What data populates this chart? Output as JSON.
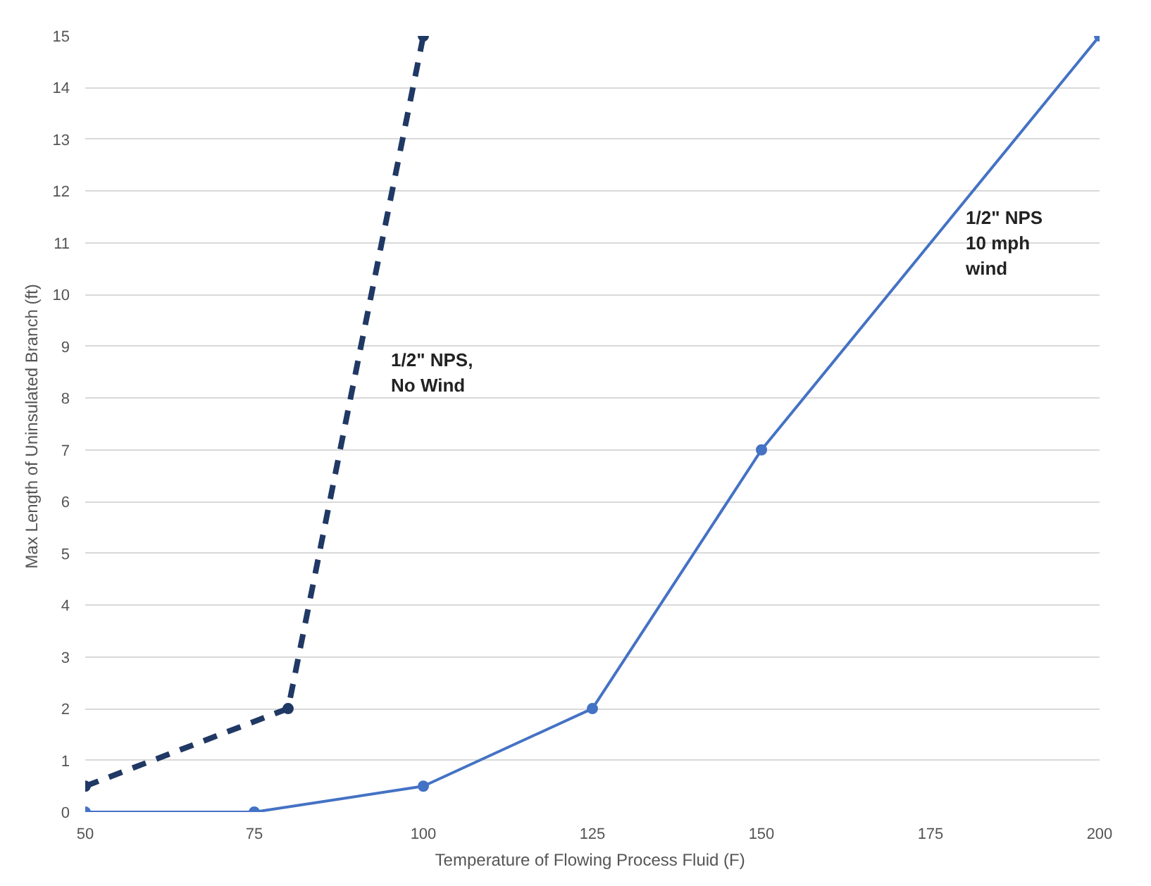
{
  "chart_data": {
    "type": "line",
    "xlabel": "Temperature  of Flowing Process Fluid (F)",
    "ylabel": "Max Length  of Uninsulated Branch (ft)",
    "xlim": [
      50,
      200
    ],
    "xticks": [
      50,
      75,
      100,
      125,
      150,
      175,
      200
    ],
    "ylim": [
      0,
      15
    ],
    "yticks": [
      0,
      1,
      2,
      3,
      4,
      5,
      6,
      7,
      8,
      9,
      10,
      11,
      12,
      13,
      14,
      15
    ],
    "grid": "y",
    "marker": "circle",
    "series": [
      {
        "name": "1/2\" NPS,\nNo Wind",
        "color": "#203864",
        "line_style": "dashed",
        "x": [
          50,
          80,
          100
        ],
        "values": [
          0.5,
          2,
          15
        ]
      },
      {
        "name": "1/2\" NPS\n10 mph\nwind",
        "color": "#4472c4",
        "line_style": "solid",
        "x": [
          50,
          75,
          100,
          125,
          150,
          200
        ],
        "values": [
          0,
          0,
          0.5,
          2,
          7,
          15
        ]
      }
    ]
  }
}
